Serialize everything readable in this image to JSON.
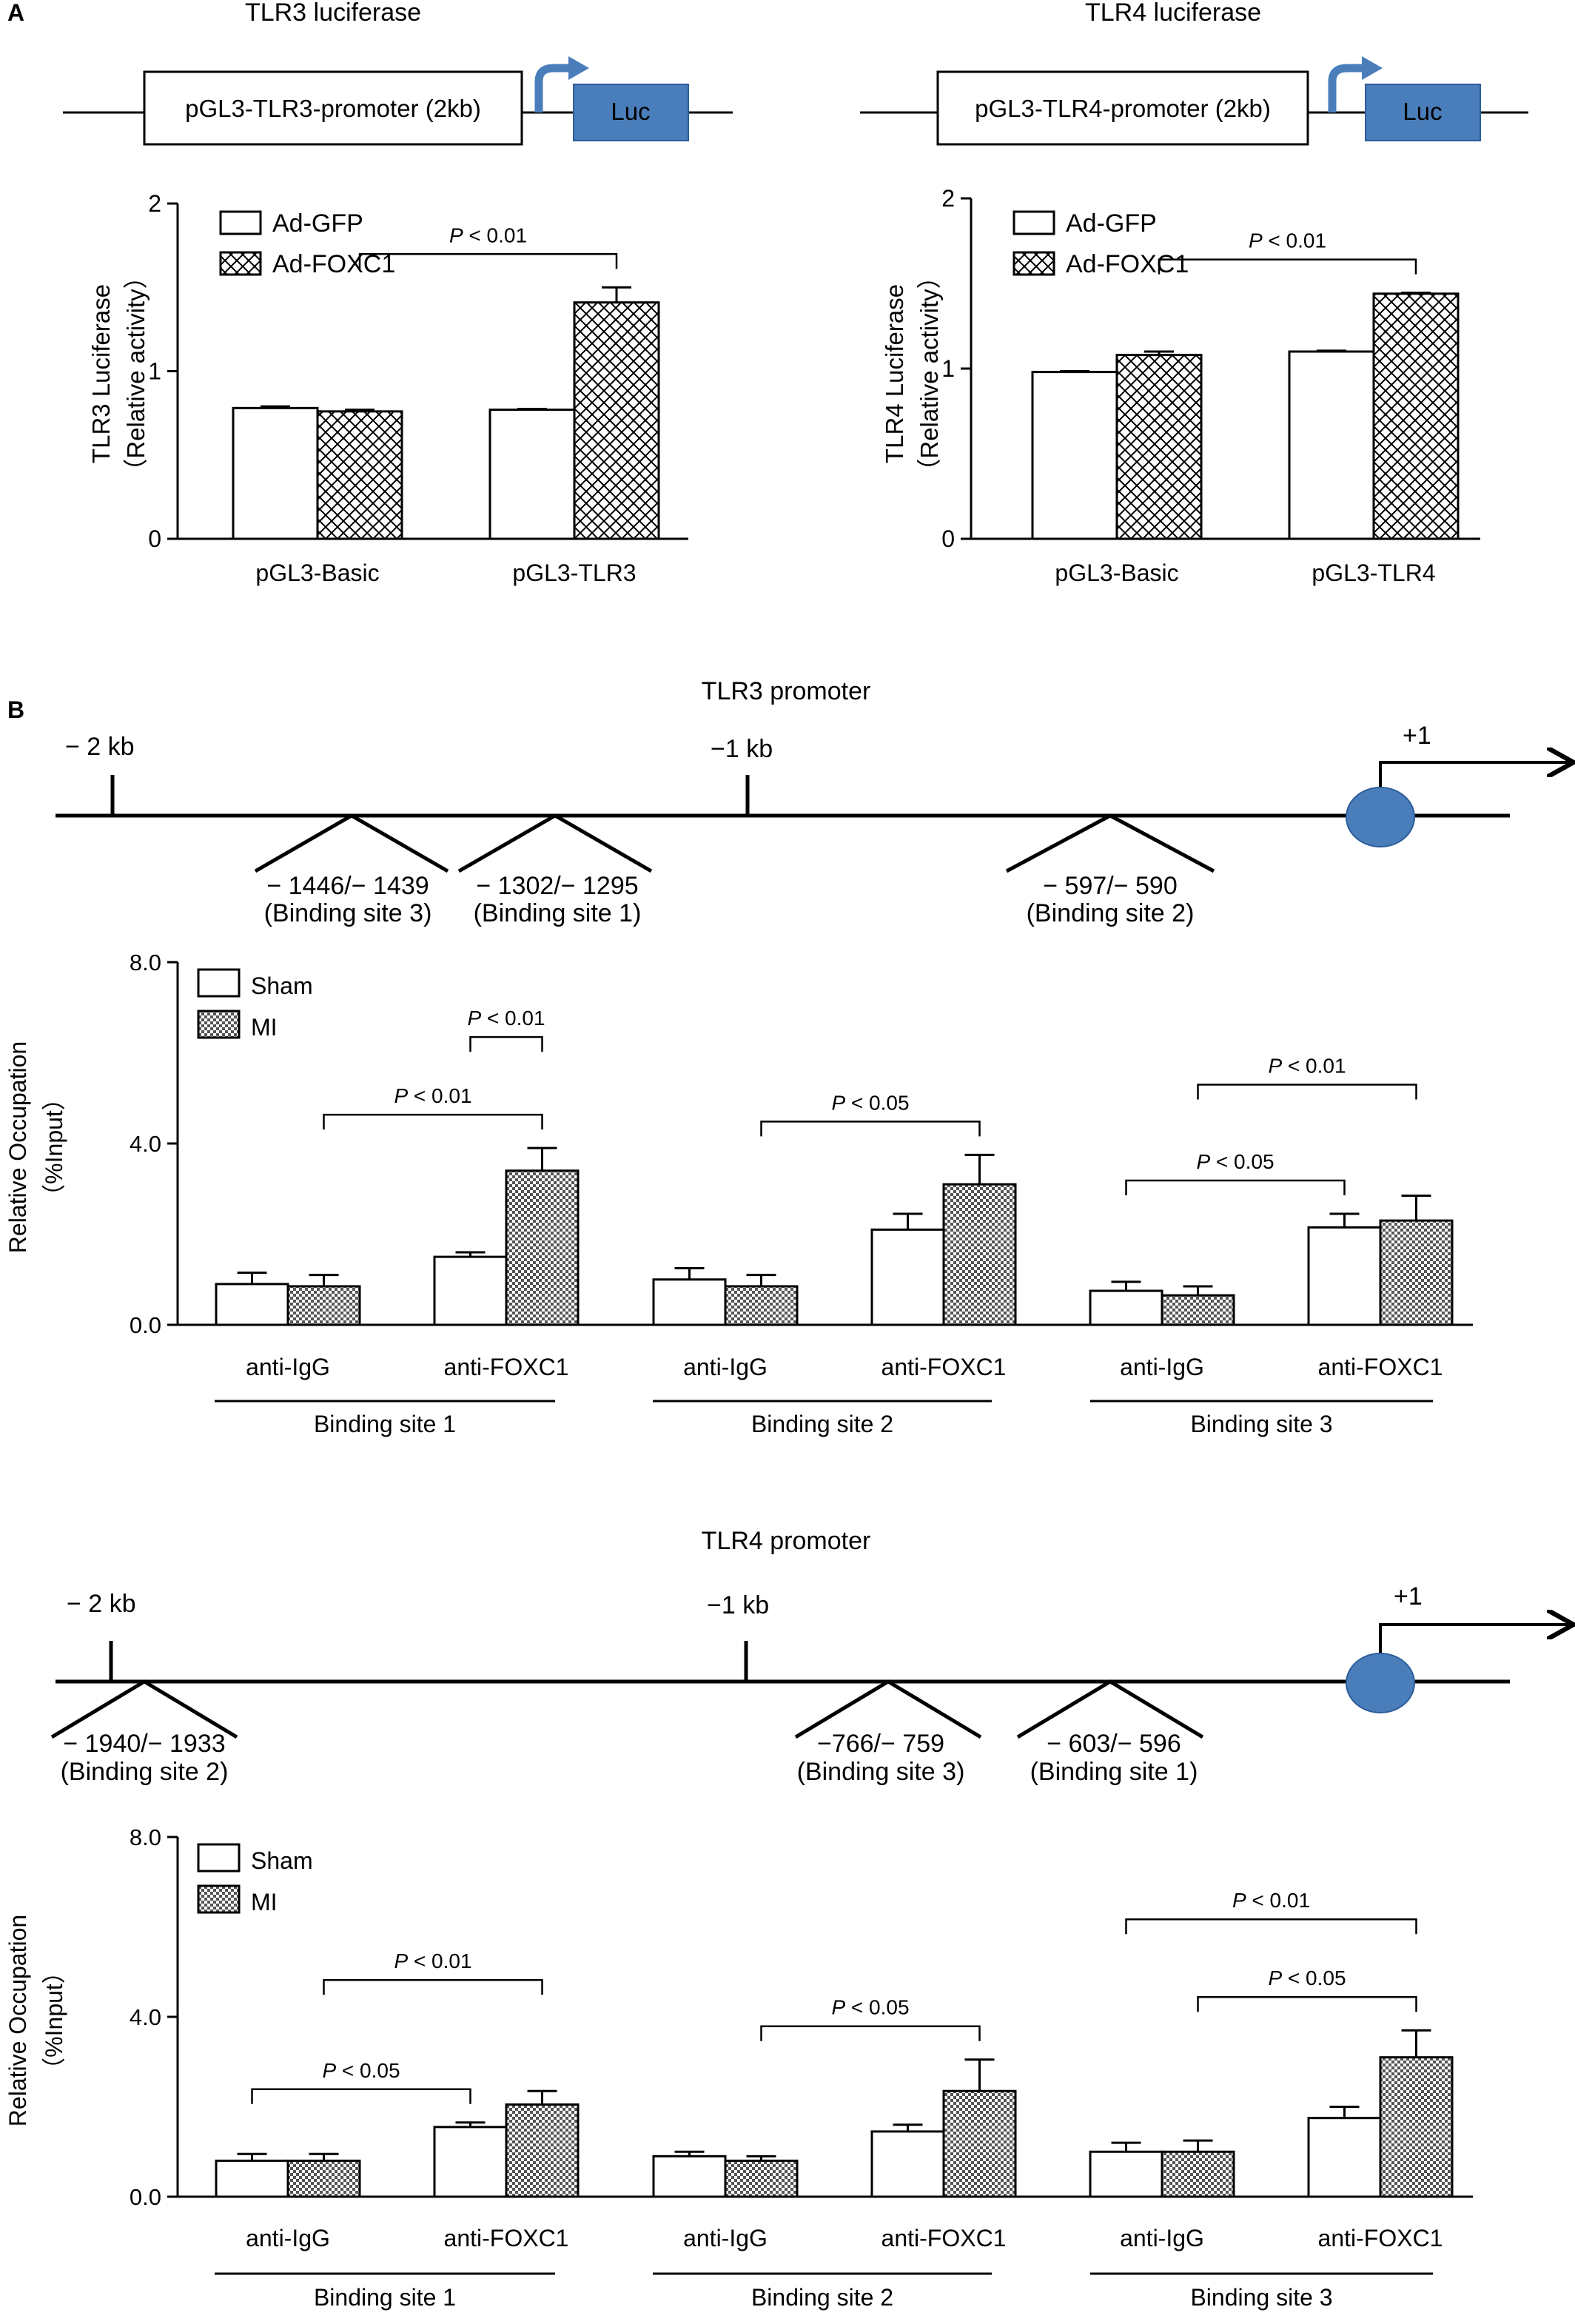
{
  "panel_labels": {
    "a": "A",
    "b": "B"
  },
  "constructs": [
    {
      "title": "TLR3 luciferase",
      "promoter": "pGL3-TLR3-promoter (2kb)",
      "reporter": "Luc"
    },
    {
      "title": "TLR4 luciferase",
      "promoter": "pGL3-TLR4-promoter (2kb)",
      "reporter": "Luc"
    }
  ],
  "promoter_maps": [
    {
      "title": "TLR3 promoter",
      "start_label": "− 2 kb",
      "mid_label": "−1 kb",
      "tss_label": "+1",
      "sites": [
        {
          "range": "− 1446/− 1439",
          "name": "(Binding site 3)"
        },
        {
          "range": "− 1302/− 1295",
          "name": "(Binding site 1)"
        },
        {
          "range": "− 597/− 590",
          "name": "(Binding site 2)"
        }
      ]
    },
    {
      "title": "TLR4 promoter",
      "start_label": "− 2 kb",
      "mid_label": "−1 kb",
      "tss_label": "+1",
      "sites": [
        {
          "range": "− 1940/− 1933",
          "name": "(Binding site 2)"
        },
        {
          "range": "−766/− 759",
          "name": "(Binding site 3)"
        },
        {
          "range": "− 603/− 596",
          "name": "(Binding site 1)"
        }
      ]
    }
  ],
  "chart_data": [
    {
      "type": "bar",
      "ylabel": "TLR3 Luciferase",
      "ylabel2": "（Relative activity）",
      "ylim": [
        0,
        2
      ],
      "yticks": [
        "0",
        "1",
        "2"
      ],
      "categories": [
        "pGL3-Basic",
        "pGL3-TLR3"
      ],
      "series": [
        {
          "name": "Ad-GFP",
          "values": [
            0.78,
            0.77
          ],
          "errors": [
            0.01,
            0.005
          ]
        },
        {
          "name": "Ad-FOXC1",
          "values": [
            0.76,
            1.41
          ],
          "errors": [
            0.01,
            0.09
          ]
        }
      ],
      "annotations": [
        {
          "p": "P",
          "rest": " < 0.01"
        }
      ]
    },
    {
      "type": "bar",
      "ylabel": "TLR4 Luciferase",
      "ylabel2": "（Relative activity）",
      "ylim": [
        0,
        2
      ],
      "yticks": [
        "0",
        "1",
        "2"
      ],
      "categories": [
        "pGL3-Basic",
        "pGL3-TLR4"
      ],
      "series": [
        {
          "name": "Ad-GFP",
          "values": [
            0.98,
            1.1
          ],
          "errors": [
            0.005,
            0.005
          ]
        },
        {
          "name": "Ad-FOXC1",
          "values": [
            1.08,
            1.44
          ],
          "errors": [
            0.02,
            0.005
          ]
        }
      ],
      "annotations": [
        {
          "p": "P",
          "rest": " < 0.01"
        }
      ]
    },
    {
      "type": "bar",
      "ylabel": "Relative Occupation",
      "ylabel2": "（%Input）",
      "ylim": [
        0,
        8
      ],
      "yticks": [
        "0.0",
        "4.0",
        "8.0"
      ],
      "categories": [
        "anti-IgG",
        "anti-FOXC1",
        "anti-IgG",
        "anti-FOXC1",
        "anti-IgG",
        "anti-FOXC1"
      ],
      "groups": [
        "Binding site 1",
        "Binding site 2",
        "Binding site 3"
      ],
      "series": [
        {
          "name": "Sham",
          "values": [
            0.9,
            1.5,
            1.0,
            2.1,
            0.75,
            2.15
          ],
          "errors": [
            0.25,
            0.1,
            0.25,
            0.35,
            0.2,
            0.3
          ]
        },
        {
          "name": "MI",
          "values": [
            0.85,
            3.4,
            0.85,
            3.1,
            0.65,
            2.3
          ],
          "errors": [
            0.25,
            0.5,
            0.25,
            0.65,
            0.2,
            0.55
          ]
        }
      ],
      "annotations": [
        {
          "p": "P",
          "rest": " < 0.01"
        },
        {
          "p": "P",
          "rest": " < 0.01"
        },
        {
          "p": "P",
          "rest": " < 0.05"
        },
        {
          "p": "P",
          "rest": " < 0.05"
        },
        {
          "p": "P",
          "rest": " < 0.01"
        }
      ]
    },
    {
      "type": "bar",
      "ylabel": "Relative Occupation",
      "ylabel2": "（%Input）",
      "ylim": [
        0,
        8
      ],
      "yticks": [
        "0.0",
        "4.0",
        "8.0"
      ],
      "categories": [
        "anti-IgG",
        "anti-FOXC1",
        "anti-IgG",
        "anti-FOXC1",
        "anti-IgG",
        "anti-FOXC1"
      ],
      "groups": [
        "Binding site 1",
        "Binding site 2",
        "Binding site 3"
      ],
      "series": [
        {
          "name": "Sham",
          "values": [
            0.8,
            1.55,
            0.9,
            1.45,
            1.0,
            1.75
          ],
          "errors": [
            0.15,
            0.1,
            0.1,
            0.15,
            0.2,
            0.25
          ]
        },
        {
          "name": "MI",
          "values": [
            0.8,
            2.05,
            0.8,
            2.35,
            1.0,
            3.1
          ],
          "errors": [
            0.15,
            0.3,
            0.1,
            0.7,
            0.25,
            0.6
          ]
        }
      ],
      "annotations": [
        {
          "p": "P",
          "rest": " < 0.05"
        },
        {
          "p": "P",
          "rest": " < 0.01"
        },
        {
          "p": "P",
          "rest": " < 0.05"
        },
        {
          "p": "P",
          "rest": " < 0.05"
        },
        {
          "p": "P",
          "rest": " < 0.01"
        }
      ]
    }
  ],
  "colors": {
    "luc_box": "#4a7ebb",
    "tss_circle": "#4a7ebb",
    "ink": "#000000"
  }
}
